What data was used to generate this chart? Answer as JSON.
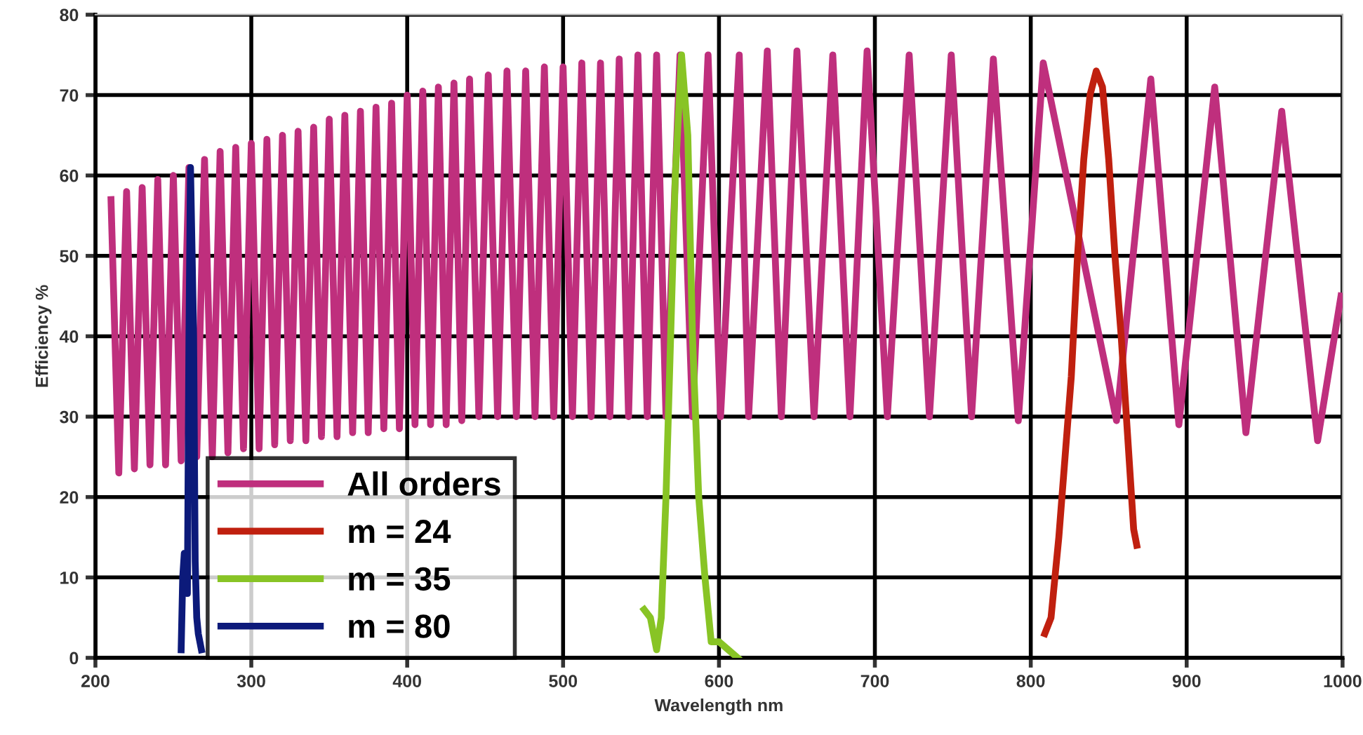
{
  "chart_data": {
    "type": "line",
    "xlabel": "Wavelength nm",
    "ylabel": "Efficiency %",
    "xlim": [
      200,
      1000
    ],
    "xticks": [
      200,
      300,
      400,
      500,
      600,
      700,
      800,
      900,
      1000
    ],
    "ylim": [
      0,
      80
    ],
    "yticks": [
      0,
      10,
      20,
      30,
      40,
      50,
      60,
      70,
      80
    ],
    "grid": true,
    "legend": "bottom left",
    "marker": "none",
    "line_style": "solid",
    "series": [
      {
        "name": "All orders",
        "color": "#bf2f7d",
        "x": [
          210,
          215,
          220,
          225,
          230,
          235,
          240,
          245,
          250,
          255,
          260,
          265,
          270,
          275,
          280,
          285,
          290,
          295,
          300,
          305,
          310,
          315,
          320,
          325,
          330,
          335,
          340,
          345,
          350,
          355,
          360,
          365,
          370,
          375,
          380,
          385,
          390,
          395,
          400,
          405,
          410,
          415,
          420,
          425,
          430,
          435,
          440,
          446,
          452,
          458,
          464,
          470,
          476,
          482,
          488,
          494,
          500,
          506,
          512,
          518,
          524,
          530,
          536,
          542,
          548,
          554,
          560,
          566,
          575,
          583,
          593,
          601,
          613,
          619,
          631,
          640,
          650,
          661,
          673,
          684,
          695,
          708,
          722,
          735,
          749,
          762,
          776,
          792,
          808,
          855,
          877,
          895,
          918,
          938,
          961,
          984,
          999
        ],
        "values": [
          57,
          23,
          58,
          23.5,
          58.5,
          24,
          59.5,
          24,
          60,
          24.5,
          61,
          25,
          62,
          25,
          63,
          25.5,
          63.5,
          26,
          64,
          26,
          64.5,
          26.5,
          65,
          27,
          65.5,
          27,
          66,
          27.5,
          67,
          27.5,
          67.5,
          28,
          68,
          28,
          68.5,
          28.5,
          69,
          28.5,
          70,
          29,
          70.5,
          29,
          71,
          29,
          71.5,
          29.5,
          72,
          30,
          72.5,
          30,
          73,
          30,
          73,
          30,
          73.5,
          30,
          73.5,
          30,
          74,
          30,
          74,
          30,
          74.5,
          30,
          75,
          30,
          75,
          30,
          75,
          30,
          75,
          30,
          75,
          30,
          75.5,
          30,
          75.5,
          30,
          75,
          30,
          75.5,
          30,
          75,
          30,
          75,
          30,
          74.5,
          29.5,
          74,
          29.5,
          72,
          29,
          71,
          28,
          68,
          27,
          45
        ]
      },
      {
        "name": "m = 24",
        "color": "#c0200f",
        "x": [
          809,
          813,
          818,
          822,
          826,
          830,
          834,
          838,
          842,
          846,
          850,
          854,
          858,
          862,
          866,
          868
        ],
        "values": [
          3,
          5,
          15,
          25,
          35,
          50,
          62,
          70,
          73,
          71,
          62,
          50,
          40,
          28,
          16,
          14
        ]
      },
      {
        "name": "m = 35",
        "color": "#88c425",
        "x": [
          552,
          556,
          560,
          563,
          566,
          569,
          572,
          576,
          580,
          583,
          587,
          591,
          595,
          600,
          606,
          612
        ],
        "values": [
          6,
          5,
          1,
          5,
          20,
          40,
          60,
          75,
          65,
          40,
          20,
          10,
          2,
          2,
          1,
          0
        ]
      },
      {
        "name": "m = 80",
        "color": "#0c1a7a",
        "x": [
          255,
          256,
          257,
          259,
          260,
          261,
          263,
          264,
          265,
          266,
          268
        ],
        "values": [
          1,
          10,
          13,
          8,
          40,
          61,
          40,
          12,
          5,
          3,
          1
        ]
      }
    ]
  }
}
